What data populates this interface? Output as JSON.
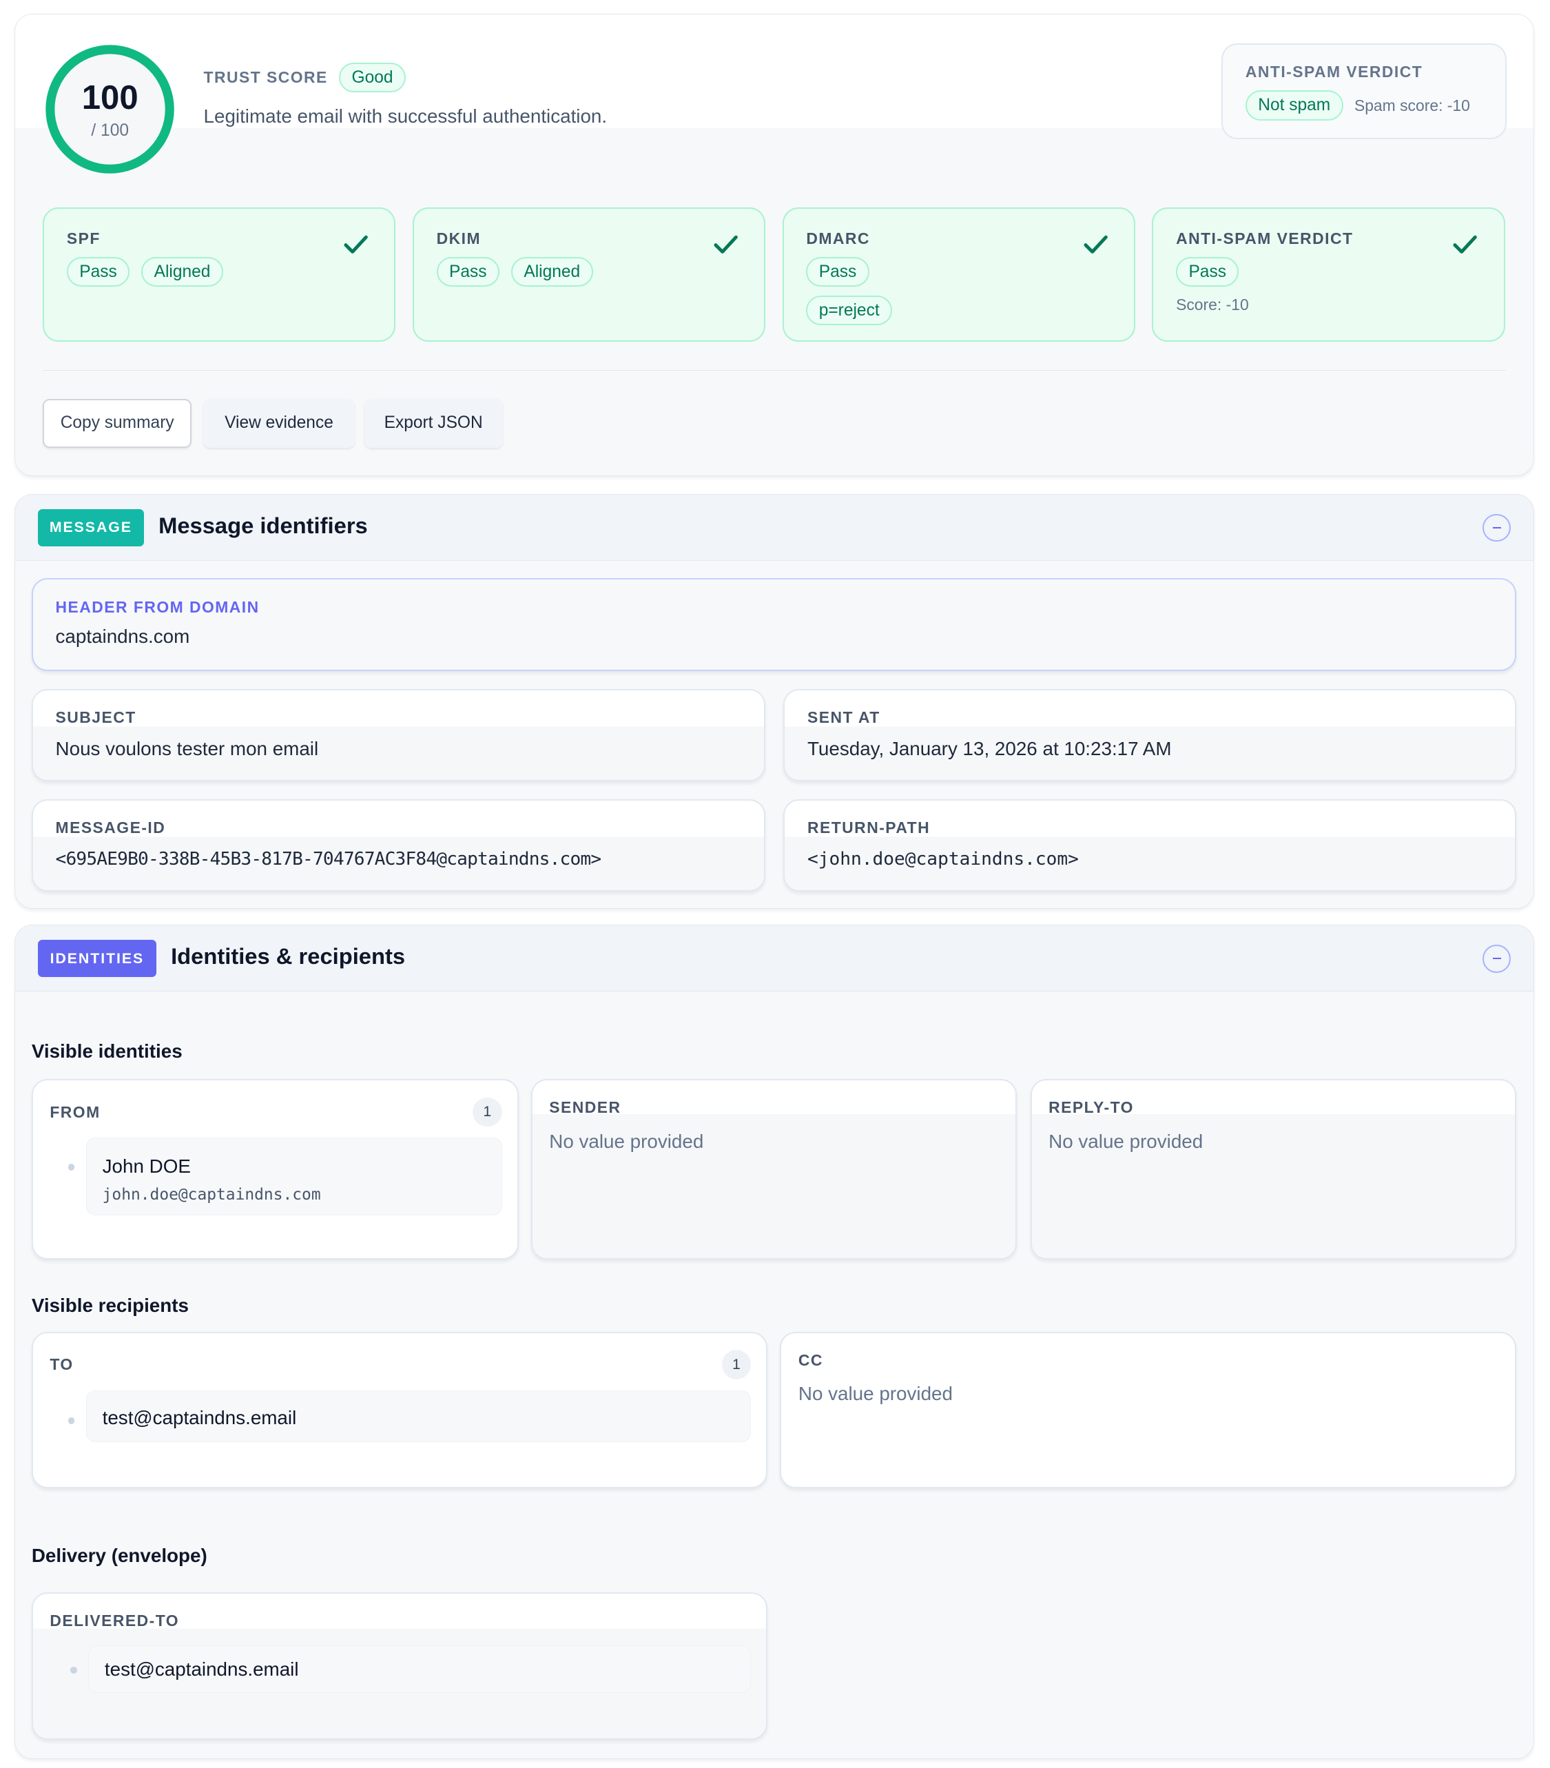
{
  "summary": {
    "score": "100",
    "score_max": "/ 100",
    "score_fraction": 1.0,
    "trust_label": "TRUST SCORE",
    "trust_badge": "Good",
    "description": "Legitimate email with successful authentication.",
    "antispam": {
      "label": "ANTI-SPAM VERDICT",
      "badge": "Not spam",
      "score": "Spam score: -10"
    },
    "checks": [
      {
        "title": "SPF",
        "badges": [
          "Pass",
          "Aligned"
        ],
        "status_icon": "check-icon"
      },
      {
        "title": "DKIM",
        "badges": [
          "Pass",
          "Aligned"
        ],
        "status_icon": "check-icon"
      },
      {
        "title": "DMARC",
        "badges": [
          "Pass",
          "p=reject"
        ],
        "status_icon": "check-icon"
      },
      {
        "title": "ANTI-SPAM VERDICT",
        "badges": [
          "Pass"
        ],
        "note": "Score: -10",
        "status_icon": "check-icon"
      }
    ],
    "actions": {
      "copy": "Copy summary",
      "evidence": "View evidence",
      "export": "Export JSON"
    }
  },
  "message": {
    "tag": "MESSAGE",
    "title": "Message identifiers",
    "header_from": {
      "label": "HEADER FROM DOMAIN",
      "value": "captaindns.com"
    },
    "subject": {
      "label": "SUBJECT",
      "value": "Nous voulons tester mon email"
    },
    "sent_at": {
      "label": "SENT AT",
      "value": "Tuesday, January 13, 2026 at 10:23:17 AM"
    },
    "message_id": {
      "label": "MESSAGE-ID",
      "value": "<695AE9B0-338B-45B3-817B-704767AC3F84@captaindns.com>"
    },
    "return_path": {
      "label": "RETURN-PATH",
      "value": "<john.doe@captaindns.com>"
    }
  },
  "identities": {
    "tag": "IDENTITIES",
    "title": "Identities & recipients",
    "visible_identities": "Visible identities",
    "from": {
      "label": "FROM",
      "count": "1",
      "name": "John DOE",
      "email": "john.doe@captaindns.com"
    },
    "sender": {
      "label": "SENDER",
      "value": "No value provided"
    },
    "reply_to": {
      "label": "REPLY-TO",
      "value": "No value provided"
    },
    "visible_recipients": "Visible recipients",
    "to": {
      "label": "TO",
      "count": "1",
      "email": "test@captaindns.email"
    },
    "cc": {
      "label": "CC",
      "value": "No value provided"
    },
    "delivery": "Delivery (envelope)",
    "delivered_to": {
      "label": "DELIVERED-TO",
      "email": "test@captaindns.email"
    }
  },
  "colors": {
    "success": "#10b981",
    "message_tag": "#14b8a6",
    "identities_tag": "#6366f1"
  }
}
